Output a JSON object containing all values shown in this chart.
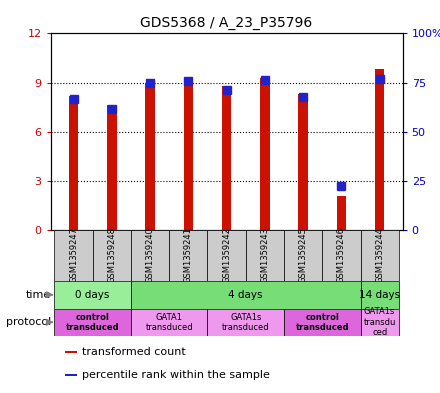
{
  "title": "GDS5368 / A_23_P35796",
  "samples": [
    "GSM1359247",
    "GSM1359248",
    "GSM1359240",
    "GSM1359241",
    "GSM1359242",
    "GSM1359243",
    "GSM1359245",
    "GSM1359246",
    "GSM1359244"
  ],
  "red_values": [
    8.2,
    7.6,
    9.0,
    9.05,
    8.8,
    9.3,
    8.3,
    2.1,
    9.8
  ],
  "blue_values": [
    8.0,
    7.4,
    9.0,
    9.1,
    8.55,
    9.15,
    8.1,
    2.7,
    9.2
  ],
  "ylim_left": [
    0,
    12
  ],
  "ylim_right": [
    0,
    100
  ],
  "yticks_left": [
    0,
    3,
    6,
    9,
    12
  ],
  "yticks_right": [
    0,
    25,
    50,
    75,
    100
  ],
  "ytick_labels_left": [
    "0",
    "3",
    "6",
    "9",
    "12"
  ],
  "ytick_labels_right": [
    "0",
    "25",
    "50",
    "75",
    "100%"
  ],
  "left_tick_color": "#cc0000",
  "right_tick_color": "#0000cc",
  "bar_color_red": "#cc1100",
  "bar_color_blue": "#2222cc",
  "red_bar_width": 0.25,
  "blue_marker_size": 6,
  "time_groups": [
    {
      "label": "0 days",
      "start": 0,
      "end": 2,
      "color": "#99ee99"
    },
    {
      "label": "4 days",
      "start": 2,
      "end": 8,
      "color": "#77dd77"
    },
    {
      "label": "14 days",
      "start": 8,
      "end": 9,
      "color": "#77dd77"
    }
  ],
  "protocol_groups": [
    {
      "label": "control\ntransduced",
      "start": 0,
      "end": 2,
      "color": "#dd66dd",
      "bold": true
    },
    {
      "label": "GATA1\ntransduced",
      "start": 2,
      "end": 4,
      "color": "#ee99ee",
      "bold": false
    },
    {
      "label": "GATA1s\ntransduced",
      "start": 4,
      "end": 6,
      "color": "#ee99ee",
      "bold": false
    },
    {
      "label": "control\ntransduced",
      "start": 6,
      "end": 8,
      "color": "#dd66dd",
      "bold": true
    },
    {
      "label": "GATA1s\ntransdu\nced",
      "start": 8,
      "end": 9,
      "color": "#ee99ee",
      "bold": false
    }
  ],
  "legend_items": [
    {
      "color": "#cc1100",
      "label": "transformed count"
    },
    {
      "color": "#2222cc",
      "label": "percentile rank within the sample"
    }
  ],
  "sample_area_color": "#cccccc",
  "gridline_color": "#000000"
}
